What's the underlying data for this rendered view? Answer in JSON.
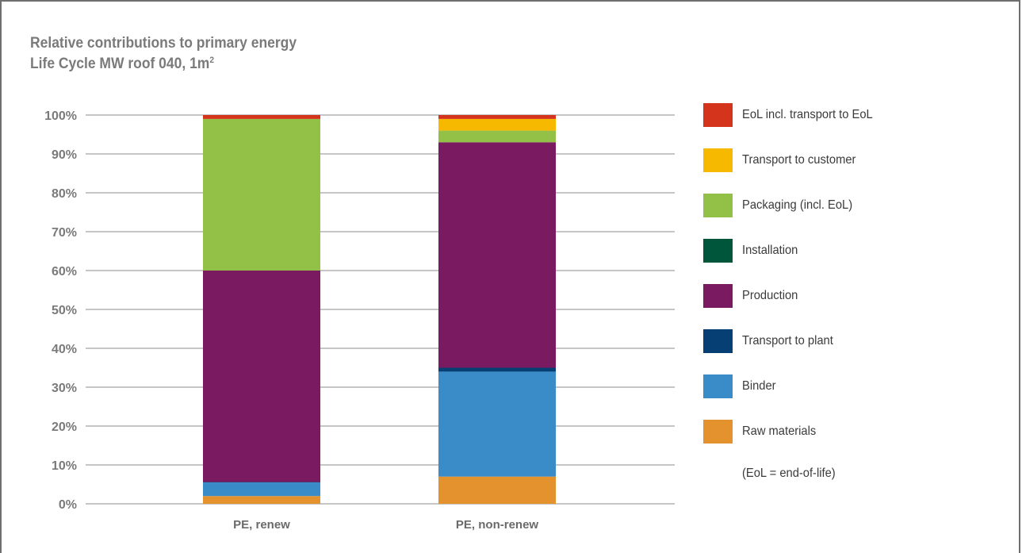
{
  "chart_data": {
    "type": "bar",
    "stacked": true,
    "title": "Relative contributions to primary energy",
    "subtitle_text": "Life Cycle MW roof 040, 1m",
    "subtitle_sup": "2",
    "categories": [
      "PE, renew",
      "PE, non-renew"
    ],
    "yticks": [
      "0%",
      "10%",
      "20%",
      "30%",
      "40%",
      "50%",
      "60%",
      "70%",
      "80%",
      "90%",
      "100%"
    ],
    "ylim": [
      0,
      100
    ],
    "grid": true,
    "legend_position": "right",
    "series": [
      {
        "name": "Raw materials",
        "color": "#e3922e",
        "values": [
          2,
          7
        ]
      },
      {
        "name": "Binder",
        "color": "#3a8cc8",
        "values": [
          3.5,
          27
        ]
      },
      {
        "name": "Transport to plant",
        "color": "#063f74",
        "values": [
          0.1,
          1
        ]
      },
      {
        "name": "Production",
        "color": "#7a1a60",
        "values": [
          54.4,
          58
        ]
      },
      {
        "name": "Installation",
        "color": "#00563a",
        "values": [
          0,
          0
        ]
      },
      {
        "name": "Packaging (incl. EoL)",
        "color": "#93c047",
        "values": [
          39,
          3
        ]
      },
      {
        "name": "Transport to customer",
        "color": "#f7b800",
        "values": [
          0,
          3
        ]
      },
      {
        "name": "EoL incl. transport to EoL",
        "color": "#d4341c",
        "values": [
          1,
          1
        ]
      }
    ],
    "note": "(EoL = end-of-life)"
  }
}
